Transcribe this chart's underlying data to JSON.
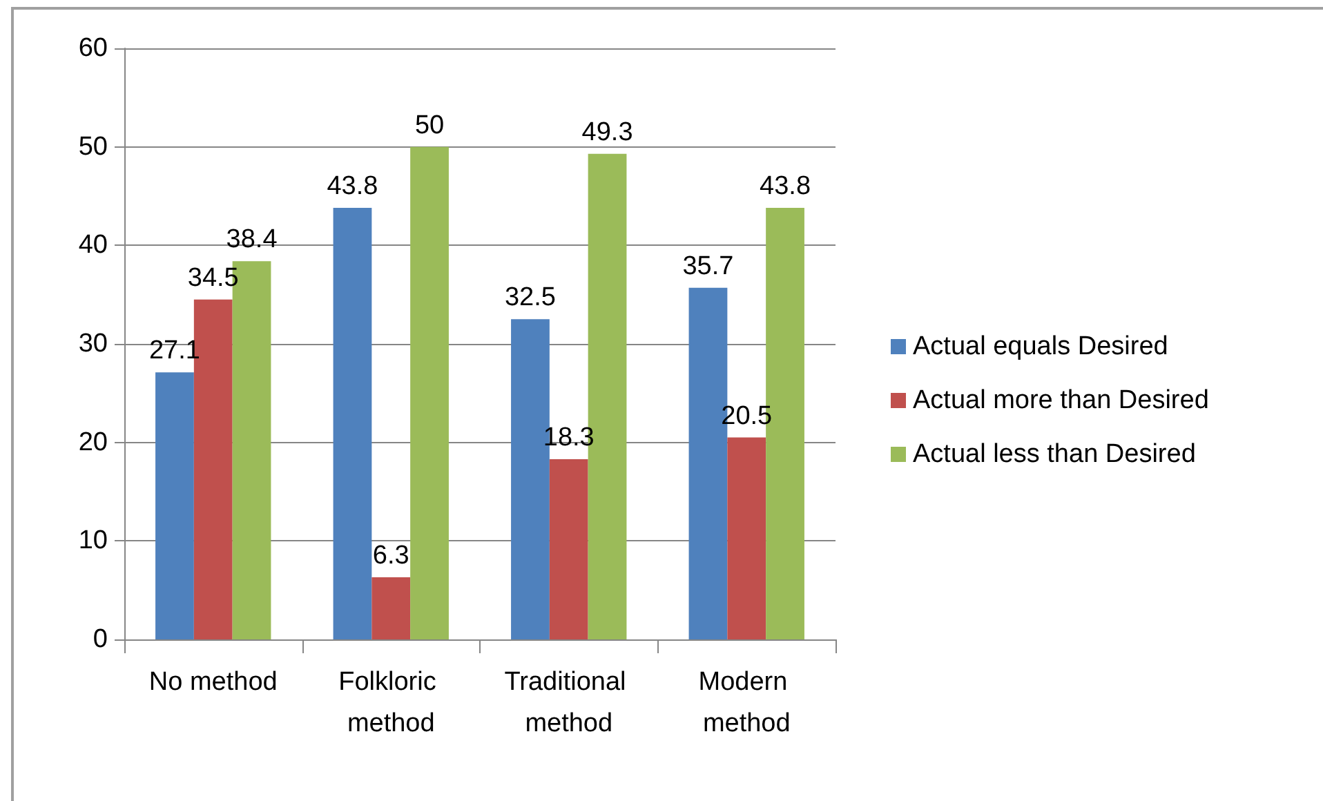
{
  "chart_data": {
    "type": "bar",
    "categories": [
      "No method",
      "Folkloric method",
      "Traditional method",
      "Modern method"
    ],
    "series": [
      {
        "name": "Actual equals Desired",
        "color": "#4f81bd",
        "values": [
          27.1,
          43.8,
          32.5,
          35.7
        ]
      },
      {
        "name": "Actual more than Desired",
        "color": "#c0504d",
        "values": [
          34.5,
          6.3,
          18.3,
          20.5
        ]
      },
      {
        "name": "Actual less than Desired",
        "color": "#9bbb59",
        "values": [
          38.4,
          50,
          49.3,
          43.8
        ]
      }
    ],
    "ylim": [
      0,
      60
    ],
    "yticks": [
      0,
      10,
      20,
      30,
      40,
      50,
      60
    ],
    "grid": "y",
    "legend": "right",
    "data_labels": true
  }
}
